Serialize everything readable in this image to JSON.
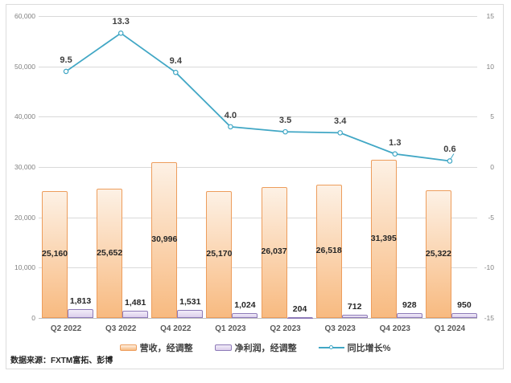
{
  "source_note": "数据来源：FXTM富拓、彭博",
  "colors": {
    "grid": "#d9d9d9",
    "axis_line": "#bfbfbf",
    "frame_border": "#dcdcdc",
    "tick_label": "#808080",
    "category_label": "#595959",
    "data_label": "#262626",
    "revenue_fill_top": "#fdf1e5",
    "revenue_fill_bottom": "#f8ba80",
    "revenue_border": "#ed9d5c",
    "profit_fill_top": "#f1ecf8",
    "profit_fill_bottom": "#dccfec",
    "profit_border": "#8d7ab8",
    "growth_line": "#41a7c5"
  },
  "chart_data": {
    "type": "bar",
    "subtype": "combo-bar-line",
    "title": "",
    "categories": [
      "Q2 2022",
      "Q3 2022",
      "Q4 2022",
      "Q1 2023",
      "Q2 2023",
      "Q3 2023",
      "Q4 2023",
      "Q1 2024"
    ],
    "series": [
      {
        "name": "营收，经调整",
        "type": "bar",
        "axis": "left",
        "values": [
          25160,
          25652,
          30996,
          25170,
          26037,
          26518,
          31395,
          25322
        ],
        "labels": [
          "25,160",
          "25,652",
          "30,996",
          "25,170",
          "26,037",
          "26,518",
          "31,395",
          "25,322"
        ],
        "label_position": "inside-center"
      },
      {
        "name": "净利润，经调整",
        "type": "bar",
        "axis": "left",
        "values": [
          1813,
          1481,
          1531,
          1024,
          204,
          712,
          928,
          950
        ],
        "labels": [
          "1,813",
          "1,481",
          "1,531",
          "1,024",
          "204",
          "712",
          "928",
          "950"
        ],
        "label_position": "outside-end"
      },
      {
        "name": "同比增长%",
        "type": "line",
        "axis": "right",
        "marker": "circle",
        "values": [
          9.5,
          13.3,
          9.4,
          4.0,
          3.5,
          3.4,
          1.3,
          0.6
        ],
        "labels": [
          "9.5",
          "13.3",
          "9.4",
          "4.0",
          "3.5",
          "3.4",
          "1.3",
          "0.6"
        ]
      }
    ],
    "left_axis": {
      "min": 0,
      "max": 60000,
      "step": 10000,
      "tick_labels": [
        "0",
        "10,000",
        "20,000",
        "30,000",
        "40,000",
        "50,000",
        "60,000"
      ]
    },
    "right_axis": {
      "min": -15,
      "max": 15,
      "step": 5,
      "tick_labels": [
        "-15",
        "-10",
        "-5",
        "0",
        "5",
        "10",
        "15"
      ]
    },
    "grid": true,
    "legend_position": "bottom"
  }
}
